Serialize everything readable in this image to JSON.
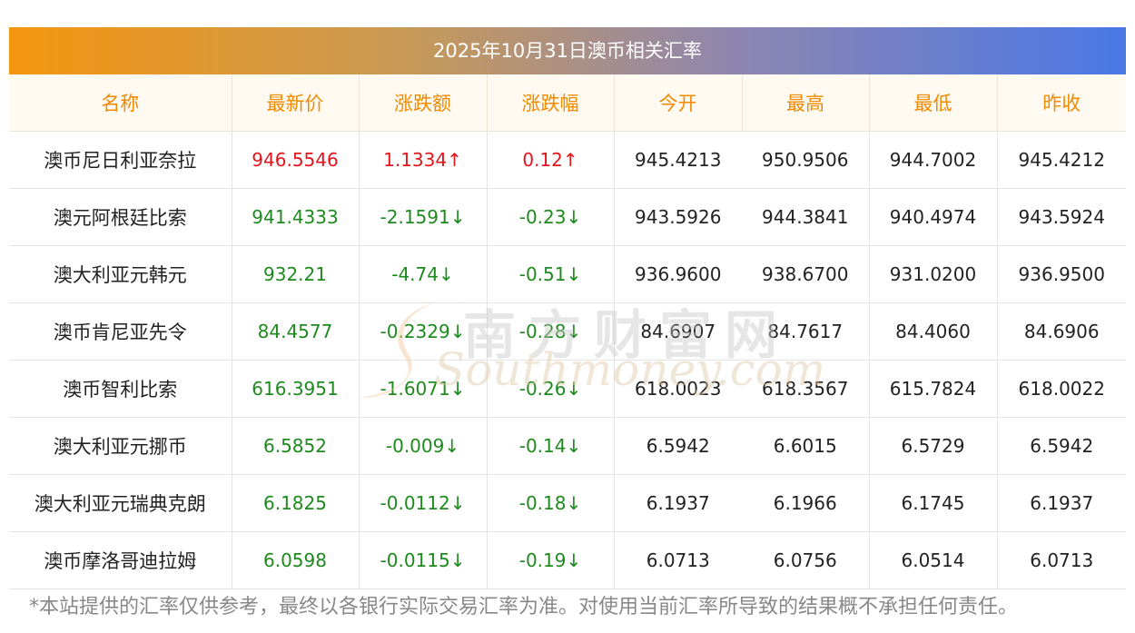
{
  "title": "2025年10月31日澳币相关汇率",
  "headers": [
    "名称",
    "最新价",
    "涨跌额",
    "涨跌幅",
    "今开",
    "最高",
    "最低",
    "昨收"
  ],
  "rows": [
    {
      "name": "澳币尼日利亚奈拉",
      "latest": "946.5546",
      "change": "1.1334↑",
      "pct": "0.12↑",
      "open": "945.4213",
      "high": "950.9506",
      "low": "944.7002",
      "prev": "945.4212",
      "dir": "up"
    },
    {
      "name": "澳元阿根廷比索",
      "latest": "941.4333",
      "change": "-2.1591↓",
      "pct": "-0.23↓",
      "open": "943.5926",
      "high": "944.3841",
      "low": "940.4974",
      "prev": "943.5924",
      "dir": "down"
    },
    {
      "name": "澳大利亚元韩元",
      "latest": "932.21",
      "change": "-4.74↓",
      "pct": "-0.51↓",
      "open": "936.9600",
      "high": "938.6700",
      "low": "931.0200",
      "prev": "936.9500",
      "dir": "down"
    },
    {
      "name": "澳币肯尼亚先令",
      "latest": "84.4577",
      "change": "-0.2329↓",
      "pct": "-0.28↓",
      "open": "84.6907",
      "high": "84.7617",
      "low": "84.4060",
      "prev": "84.6906",
      "dir": "down"
    },
    {
      "name": "澳币智利比索",
      "latest": "616.3951",
      "change": "-1.6071↓",
      "pct": "-0.26↓",
      "open": "618.0023",
      "high": "618.3567",
      "low": "615.7824",
      "prev": "618.0022",
      "dir": "down"
    },
    {
      "name": "澳大利亚元挪币",
      "latest": "6.5852",
      "change": "-0.009↓",
      "pct": "-0.14↓",
      "open": "6.5942",
      "high": "6.6015",
      "low": "6.5729",
      "prev": "6.5942",
      "dir": "down"
    },
    {
      "name": "澳大利亚元瑞典克朗",
      "latest": "6.1825",
      "change": "-0.0112↓",
      "pct": "-0.18↓",
      "open": "6.1937",
      "high": "6.1966",
      "low": "6.1745",
      "prev": "6.1937",
      "dir": "down"
    },
    {
      "name": "澳币摩洛哥迪拉姆",
      "latest": "6.0598",
      "change": "-0.0115↓",
      "pct": "-0.19↓",
      "open": "6.0713",
      "high": "6.0756",
      "low": "6.0514",
      "prev": "6.0713",
      "dir": "down"
    }
  ],
  "watermark": {
    "cn": "南方财富网",
    "en": "Southmoney.com"
  },
  "footnote": "*本站提供的汇率仅供参考，最终以各银行实际交易汇率为准。对使用当前汇率所导致的结果概不承担任何责任。",
  "colors": {
    "up": "#e4141b",
    "down": "#1e8a1e",
    "header_text": "#f08a00",
    "gradient_start": "#f5960f",
    "gradient_end": "#4a78e6"
  }
}
